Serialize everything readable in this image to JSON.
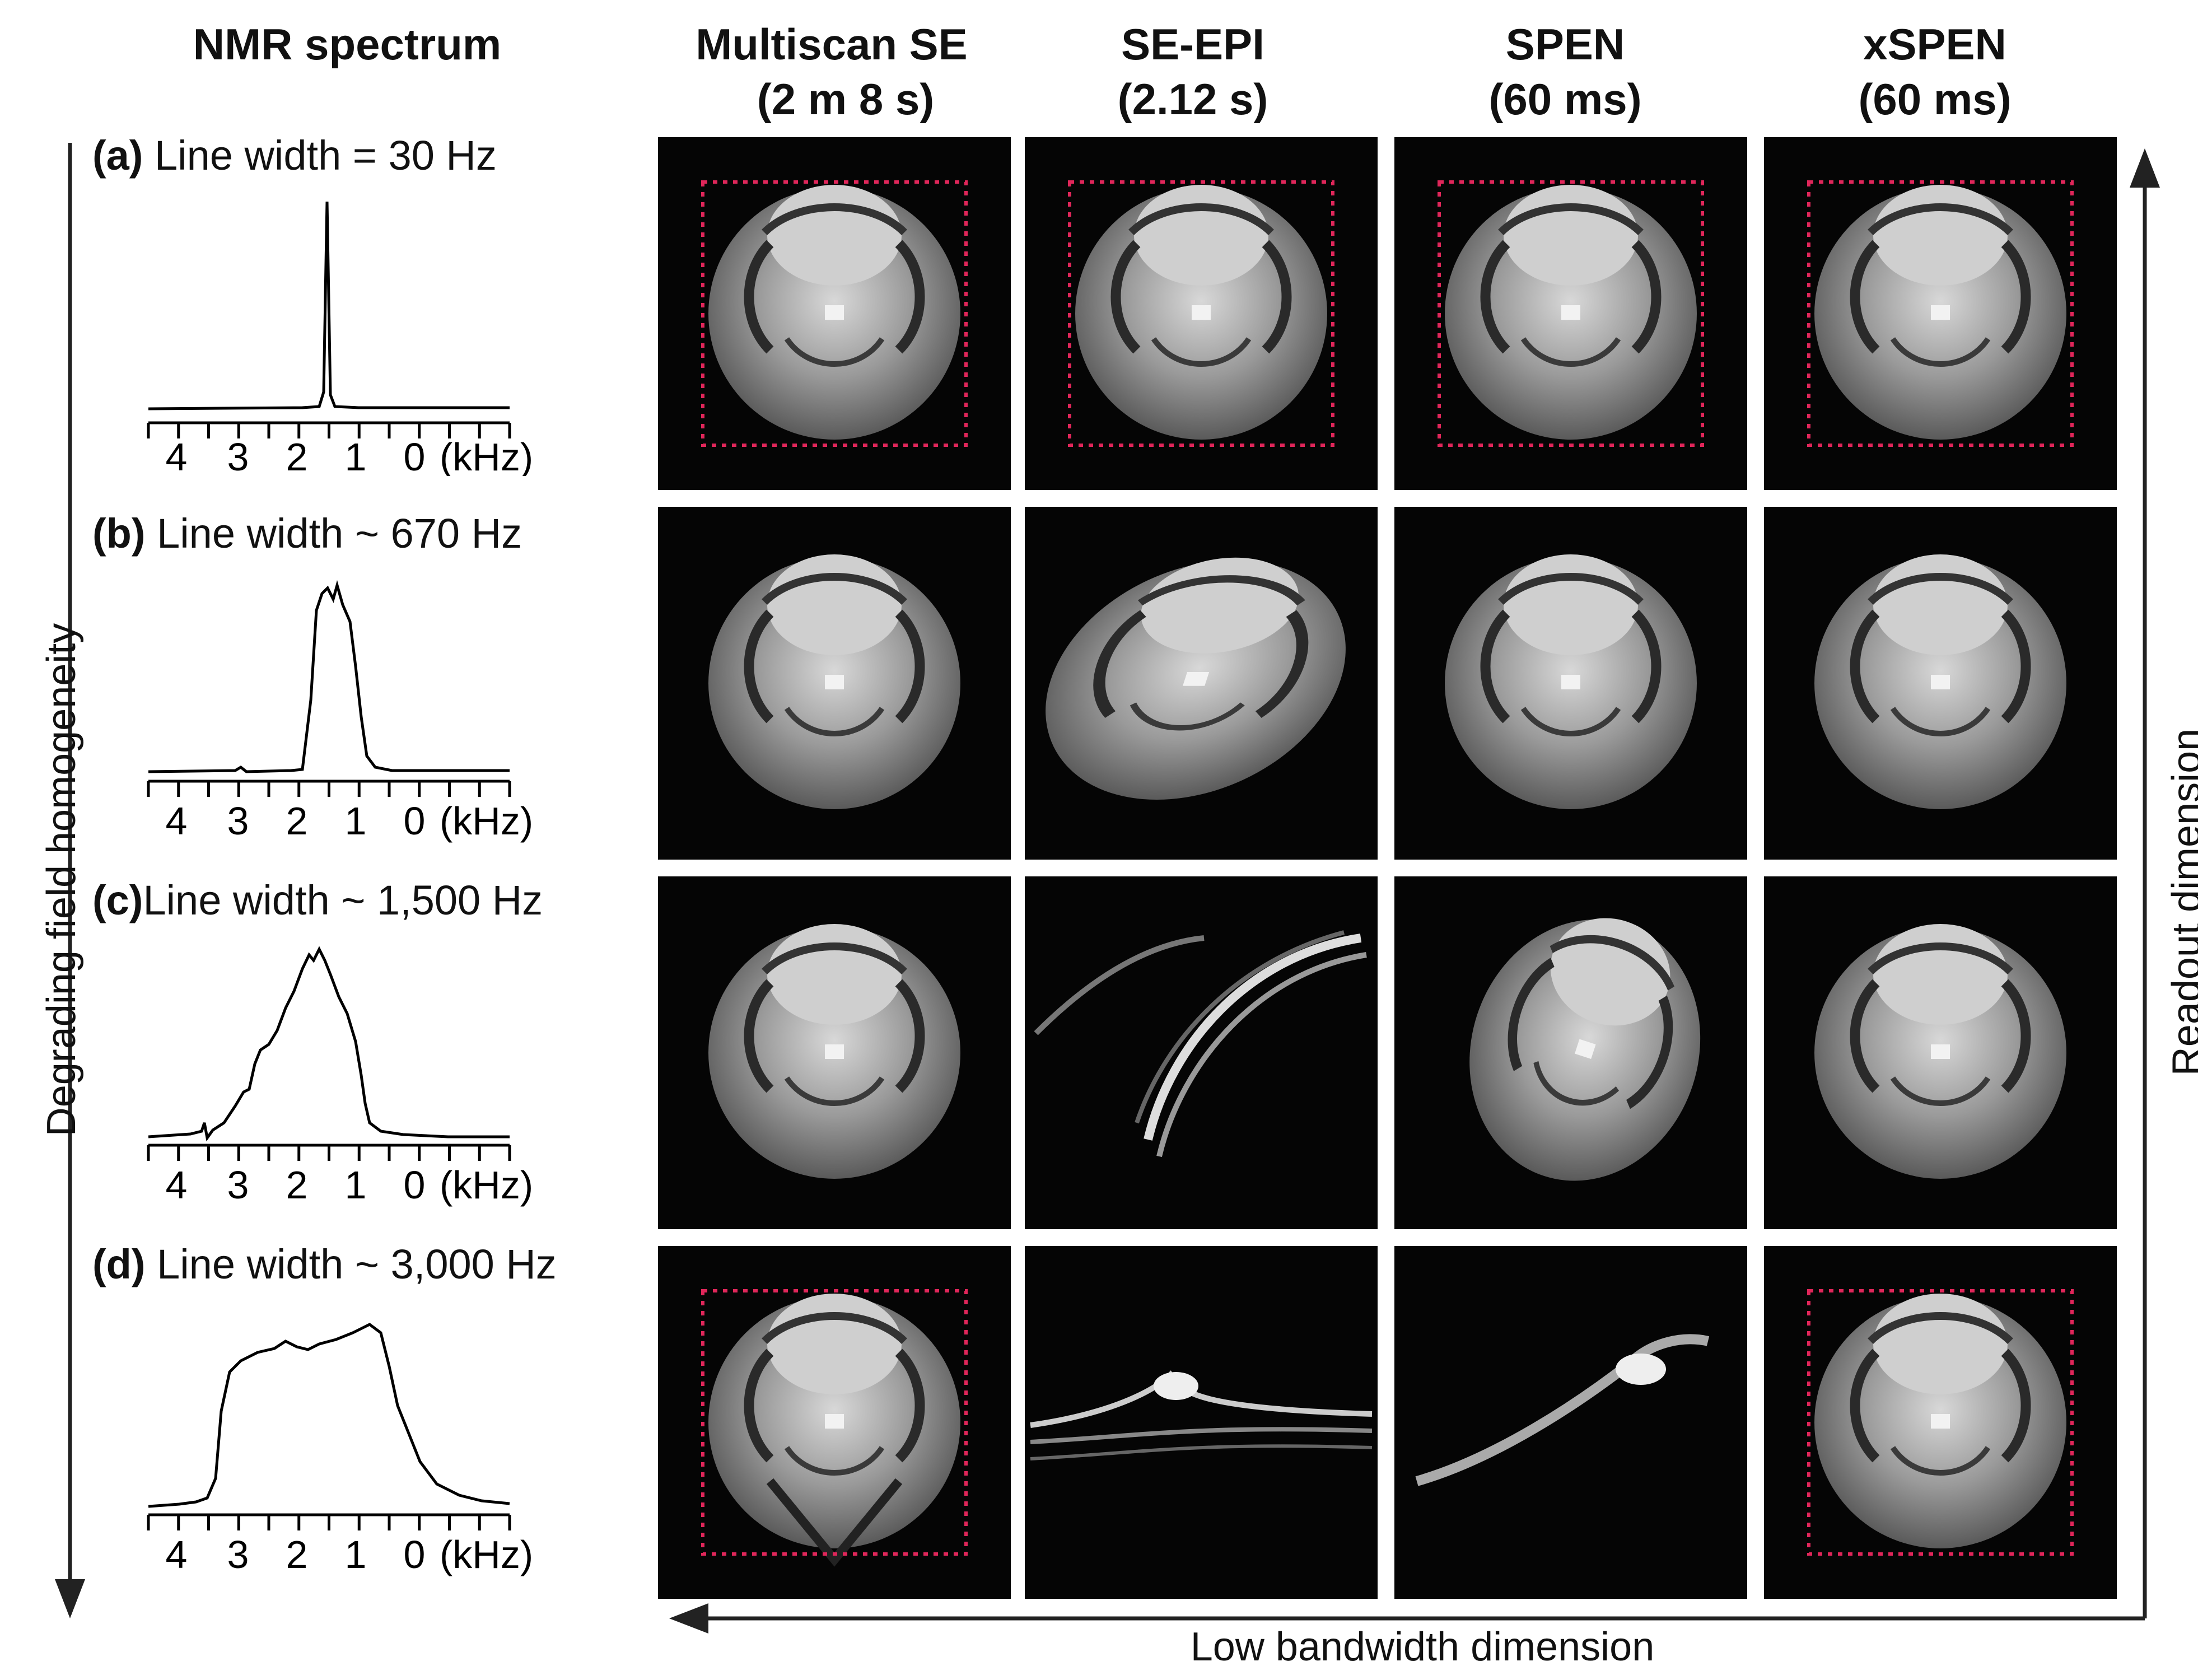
{
  "columns": {
    "spectrum": "NMR spectrum",
    "multiscan_line1": "Multiscan SE",
    "multiscan_line2": "(2 m 8 s)",
    "seepi_line1": "SE-EPI",
    "seepi_line2": "(2.12 s)",
    "spen_line1": "SPEN",
    "spen_line2": "(60 ms)",
    "xspen_line1": "xSPEN",
    "xspen_line2": "(60 ms)"
  },
  "rows": [
    {
      "letter": "(a)",
      "text": "Line width = 30 Hz",
      "ticks": [
        "4",
        "3",
        "2",
        "1",
        "0"
      ],
      "unit": "(kHz)"
    },
    {
      "letter": "(b)",
      "text": "Line width ~ 670 Hz",
      "ticks": [
        "4",
        "3",
        "2",
        "1",
        "0"
      ],
      "unit": "(kHz)"
    },
    {
      "letter": "(c)",
      "text": "Line width ~ 1,500 Hz",
      "ticks": [
        "4",
        "3",
        "2",
        "1",
        "0"
      ],
      "unit": "(kHz)"
    },
    {
      "letter": "(d)",
      "text": "Line width ~ 3,000 Hz",
      "ticks": [
        "4",
        "3",
        "2",
        "1",
        "0"
      ],
      "unit": "(kHz)"
    }
  ],
  "axes": {
    "left_label": "Degrading field homogeneity",
    "right_label": "Readout dimension",
    "bottom_label": "Low bandwidth dimension"
  },
  "colors": {
    "roi_box": "#e0265a",
    "spectrum_line": "#000000",
    "image_background": "#050505"
  }
}
